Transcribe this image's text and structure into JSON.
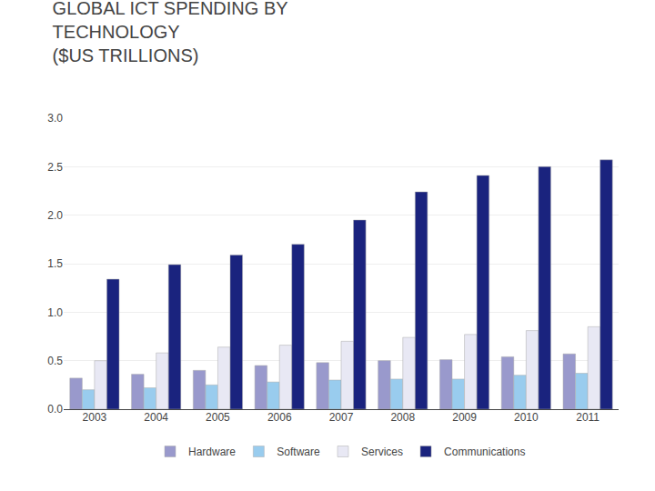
{
  "chart_data": {
    "type": "bar",
    "title": "GLOBAL ICT SPENDING BY\nTECHNOLOGY\n($US TRILLIONS)",
    "categories": [
      "2003",
      "2004",
      "2005",
      "2006",
      "2007",
      "2008",
      "2009",
      "2010",
      "2011"
    ],
    "series": [
      {
        "name": "Hardware",
        "color": "#9999cc",
        "values": [
          0.32,
          0.36,
          0.4,
          0.45,
          0.48,
          0.5,
          0.51,
          0.54,
          0.57
        ]
      },
      {
        "name": "Software",
        "color": "#99ccee",
        "values": [
          0.2,
          0.22,
          0.25,
          0.28,
          0.3,
          0.31,
          0.31,
          0.35,
          0.37
        ]
      },
      {
        "name": "Services",
        "color": "#e8e8f4",
        "values": [
          0.5,
          0.58,
          0.64,
          0.66,
          0.7,
          0.74,
          0.77,
          0.81,
          0.85
        ]
      },
      {
        "name": "Communications",
        "color": "#1a237e",
        "values": [
          1.34,
          1.49,
          1.59,
          1.7,
          1.95,
          2.24,
          2.41,
          2.5,
          2.57
        ]
      }
    ],
    "ylim": [
      0.0,
      3.0
    ],
    "yticks": [
      {
        "value": 0,
        "label": "0.0"
      },
      0.5,
      {
        "value": 1,
        "label": "1.0"
      },
      1.5,
      {
        "value": 2,
        "label": "2.0"
      },
      2.5,
      {
        "value": 3,
        "label": "3.0"
      }
    ],
    "grid": true,
    "legend": "bottom"
  }
}
